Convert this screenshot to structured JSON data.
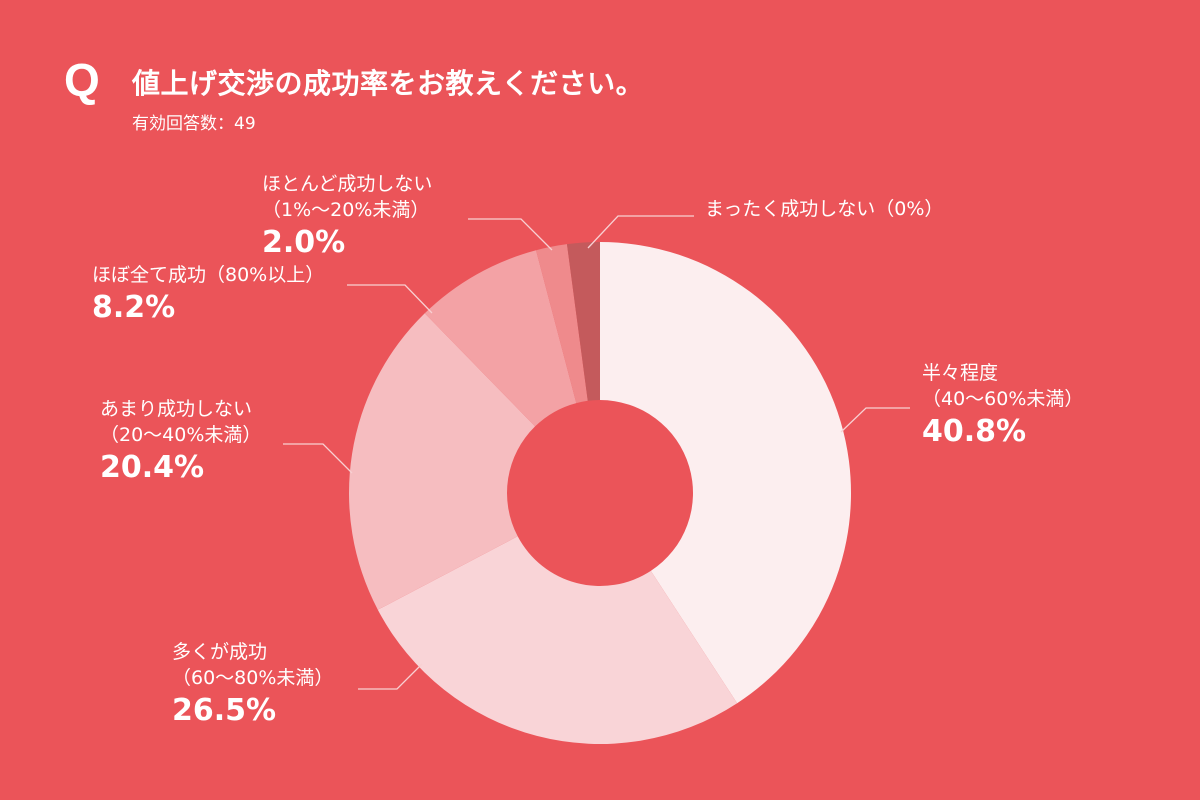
{
  "header": {
    "q_mark": "Q",
    "title": "値上げ交渉の成功率をお教えください。",
    "subtitle": "有効回答数：49"
  },
  "colors": {
    "background": "#EB5459",
    "text": "#FFFFFF",
    "leader_line": "#F8D0D2"
  },
  "chart_data": {
    "type": "pie",
    "variant": "donut",
    "title": "値上げ交渉の成功率をお教えください。",
    "subtitle": "有効回答数：49",
    "n": 49,
    "start_angle_deg": 0,
    "direction": "clockwise",
    "center": [
      600,
      493
    ],
    "outer_radius": 251,
    "inner_radius": 93,
    "slices": [
      {
        "name": "半々程度",
        "range": "（40〜60%未満）",
        "value": 40.8,
        "label": "40.8%",
        "color": "#FCEEEF"
      },
      {
        "name": "多くが成功",
        "range": "（60〜80%未満）",
        "value": 26.5,
        "label": "26.5%",
        "color": "#F9D4D7"
      },
      {
        "name": "あまり成功しない",
        "range": "（20〜40%未満）",
        "value": 20.4,
        "label": "20.4%",
        "color": "#F6BDC0"
      },
      {
        "name": "ほぼ全て成功",
        "range": "（80%以上）",
        "value": 8.2,
        "label": "8.2%",
        "color": "#F3A2A5"
      },
      {
        "name": "ほとんど成功しない",
        "range": "（1%〜20%未満）",
        "value": 2.0,
        "label": "2.0%",
        "color": "#EF8A8C"
      },
      {
        "name": "まったく成功しない",
        "range": "（0%）",
        "value": 0,
        "label": "",
        "color": "#C45A5C",
        "visual_value": 2.1
      }
    ]
  },
  "labels": [
    {
      "id": "s40",
      "line1": "半々程度",
      "line2": "（40〜60%未満）",
      "value": "40.8%"
    },
    {
      "id": "s60",
      "line1": "多くが成功",
      "line2": "（60〜80%未満）",
      "value": "26.5%"
    },
    {
      "id": "s20",
      "line1": "あまり成功しない",
      "line2": "（20〜40%未満）",
      "value": "20.4%"
    },
    {
      "id": "s80",
      "line1": "ほぼ全て成功（80%以上）",
      "value": "8.2%"
    },
    {
      "id": "s1",
      "line1": "ほとんど成功しない",
      "line2": "（1%〜20%未満）",
      "value": "2.0%"
    },
    {
      "id": "s0",
      "line1": "まったく成功しない（0%）"
    }
  ]
}
